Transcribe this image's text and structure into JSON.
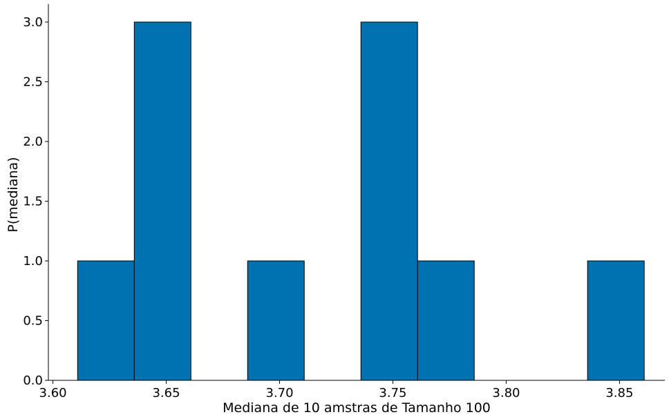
{
  "chart_data": {
    "type": "bar",
    "chart_subtype": "histogram",
    "title": "",
    "xlabel": "Mediana de 10 amstras de Tamanho 100",
    "ylabel": "P(mediana)",
    "bin_edges": [
      3.6109,
      3.6359,
      3.6609,
      3.6859,
      3.7109,
      3.7359,
      3.7609,
      3.7859,
      3.8109,
      3.8359,
      3.8609
    ],
    "values": [
      1,
      3,
      0,
      1,
      0,
      3,
      1,
      0,
      0,
      1
    ],
    "xlim": [
      3.598,
      3.87
    ],
    "ylim": [
      0,
      3.15
    ],
    "xticks": [
      3.6,
      3.65,
      3.7,
      3.75,
      3.8,
      3.85
    ],
    "xtick_labels": [
      "3.60",
      "3.65",
      "3.70",
      "3.75",
      "3.80",
      "3.85"
    ],
    "yticks": [
      0,
      0.5,
      1,
      1.5,
      2,
      2.5,
      3
    ],
    "ytick_labels": [
      "0.0",
      "0.5",
      "1.0",
      "1.5",
      "2.0",
      "2.5",
      "3.0"
    ],
    "bar_color": "#0072b2",
    "edge_color": "#000000",
    "grid": false,
    "legend": "none"
  }
}
